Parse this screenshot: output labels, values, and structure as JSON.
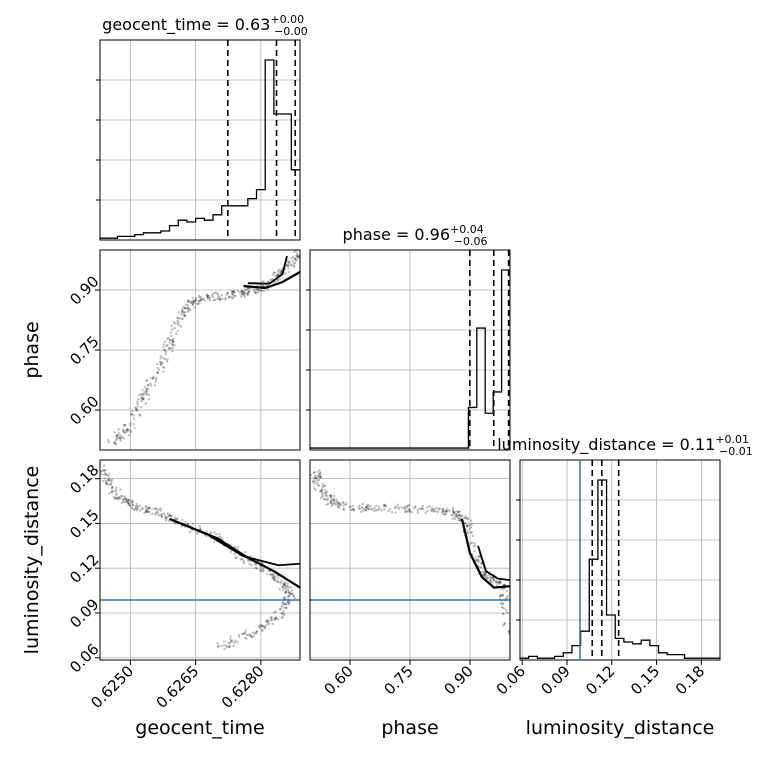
{
  "chart_data": {
    "type": "corner",
    "parameters": [
      "geocent_time",
      "phase",
      "luminosity_distance"
    ],
    "axis_labels": [
      "geocent_time",
      "phase",
      "luminosity_distance"
    ],
    "titles": [
      {
        "param": "geocent_time",
        "name": "geocent_time",
        "value": "0.63",
        "plus": "+0.00",
        "minus": "−0.00"
      },
      {
        "param": "phase",
        "name": "phase",
        "value": "0.96",
        "plus": "+0.04",
        "minus": "−0.06"
      },
      {
        "param": "luminosity_distance",
        "name": "luminosity_distance",
        "value": "0.11",
        "plus": "+0.01",
        "minus": "−0.01"
      }
    ],
    "ranges": {
      "geocent_time": [
        0.6243,
        0.6289
      ],
      "phase": [
        0.5,
        1.0
      ],
      "luminosity_distance": [
        0.0585,
        0.1925
      ]
    },
    "ticks": {
      "geocent_time": [
        "0.6250",
        "0.6265",
        "0.6280"
      ],
      "phase": [
        "0.60",
        "0.75",
        "0.90"
      ],
      "luminosity_distance": [
        "0.06",
        "0.09",
        "0.12",
        "0.15",
        "0.18"
      ]
    },
    "quantiles": {
      "geocent_time": [
        0.62724,
        0.62836,
        0.62879
      ],
      "phase": [
        0.8996,
        0.9594,
        0.9965
      ],
      "luminosity_distance": [
        0.1069,
        0.1133,
        0.1246
      ]
    },
    "injection": {
      "luminosity_distance": 0.0987
    },
    "histograms": {
      "geocent_time": {
        "edges": [
          0.6243,
          0.6245,
          0.6247,
          0.6249,
          0.6251,
          0.6253,
          0.6255,
          0.6257,
          0.6259,
          0.6261,
          0.6263,
          0.6265,
          0.6267,
          0.6269,
          0.6271,
          0.6273,
          0.6275,
          0.6277,
          0.6279,
          0.6281,
          0.6283,
          0.6285,
          0.6287,
          0.6289
        ],
        "density": [
          0.01,
          0.01,
          0.02,
          0.02,
          0.03,
          0.04,
          0.04,
          0.05,
          0.08,
          0.11,
          0.1,
          0.12,
          0.11,
          0.14,
          0.19,
          0.19,
          0.19,
          0.23,
          0.28,
          1.0,
          0.7,
          0.7,
          0.39
        ]
      },
      "phase": {
        "edges": [
          0.5,
          0.521,
          0.542,
          0.563,
          0.583,
          0.604,
          0.625,
          0.646,
          0.667,
          0.688,
          0.708,
          0.729,
          0.75,
          0.771,
          0.792,
          0.813,
          0.833,
          0.854,
          0.875,
          0.896,
          0.917,
          0.938,
          0.958,
          0.979,
          1.0
        ],
        "density": [
          0.01,
          0.01,
          0.01,
          0.01,
          0.01,
          0.01,
          0.01,
          0.01,
          0.01,
          0.01,
          0.01,
          0.01,
          0.01,
          0.01,
          0.01,
          0.01,
          0.01,
          0.01,
          0.01,
          0.22,
          0.63,
          0.19,
          0.3,
          0.93
        ]
      },
      "luminosity_distance": {
        "edges": [
          0.0585,
          0.0643,
          0.0701,
          0.0759,
          0.0817,
          0.0875,
          0.0933,
          0.0991,
          0.1049,
          0.1107,
          0.1165,
          0.1223,
          0.1281,
          0.1339,
          0.1397,
          0.1455,
          0.1513,
          0.1571,
          0.1629,
          0.1687,
          0.1745,
          0.1803,
          0.1861,
          0.1925
        ],
        "density": [
          0.01,
          0.02,
          0.01,
          0.01,
          0.02,
          0.04,
          0.08,
          0.16,
          0.56,
          1.0,
          0.25,
          0.12,
          0.1,
          0.09,
          0.11,
          0.08,
          0.04,
          0.03,
          0.03,
          0.01,
          0.01,
          0.01,
          0.01
        ]
      }
    },
    "contours": {
      "phase_vs_geocent_time": [
        [
          [
            0.6276,
            0.91
          ],
          [
            0.6281,
            0.905
          ],
          [
            0.6285,
            0.92
          ],
          [
            0.6289,
            0.945
          ]
        ],
        [
          [
            0.6277,
            0.917
          ],
          [
            0.6282,
            0.916
          ],
          [
            0.6285,
            0.94
          ],
          [
            0.6286,
            0.985
          ]
        ]
      ],
      "luminosity_distance_vs_geocent_time": [
        [
          [
            0.6259,
            0.153
          ],
          [
            0.627,
            0.14
          ],
          [
            0.6277,
            0.127
          ],
          [
            0.6283,
            0.118
          ],
          [
            0.6289,
            0.107
          ]
        ],
        [
          [
            0.6268,
            0.142
          ],
          [
            0.6276,
            0.128
          ],
          [
            0.6284,
            0.122
          ],
          [
            0.6289,
            0.123
          ]
        ]
      ],
      "luminosity_distance_vs_phase": [
        [
          [
            0.88,
            0.153
          ],
          [
            0.9,
            0.13
          ],
          [
            0.93,
            0.114
          ],
          [
            0.96,
            0.107
          ],
          [
            1.0,
            0.108
          ]
        ],
        [
          [
            0.92,
            0.135
          ],
          [
            0.94,
            0.118
          ],
          [
            0.97,
            0.113
          ],
          [
            1.0,
            0.112
          ]
        ]
      ]
    },
    "scatter_trend": {
      "phase_vs_geocent_time": [
        [
          0.6245,
          0.51
        ],
        [
          0.625,
          0.56
        ],
        [
          0.6254,
          0.65
        ],
        [
          0.6258,
          0.74
        ],
        [
          0.6261,
          0.82
        ],
        [
          0.6264,
          0.87
        ],
        [
          0.627,
          0.885
        ],
        [
          0.6276,
          0.89
        ],
        [
          0.6281,
          0.91
        ],
        [
          0.6285,
          0.95
        ],
        [
          0.6289,
          0.99
        ]
      ],
      "luminosity_distance_vs_geocent_time": [
        [
          0.6243,
          0.188
        ],
        [
          0.6246,
          0.172
        ],
        [
          0.625,
          0.162
        ],
        [
          0.6256,
          0.158
        ],
        [
          0.6262,
          0.15
        ],
        [
          0.627,
          0.14
        ],
        [
          0.6277,
          0.126
        ],
        [
          0.6283,
          0.115
        ],
        [
          0.6287,
          0.104
        ],
        [
          0.6285,
          0.09
        ],
        [
          0.6278,
          0.077
        ],
        [
          0.6271,
          0.068
        ]
      ],
      "luminosity_distance_vs_phase": [
        [
          0.51,
          0.186
        ],
        [
          0.53,
          0.17
        ],
        [
          0.57,
          0.162
        ],
        [
          0.65,
          0.16
        ],
        [
          0.75,
          0.16
        ],
        [
          0.85,
          0.158
        ],
        [
          0.89,
          0.152
        ],
        [
          0.91,
          0.13
        ],
        [
          0.94,
          0.115
        ],
        [
          0.98,
          0.108
        ],
        [
          1.0,
          0.075
        ]
      ]
    }
  }
}
